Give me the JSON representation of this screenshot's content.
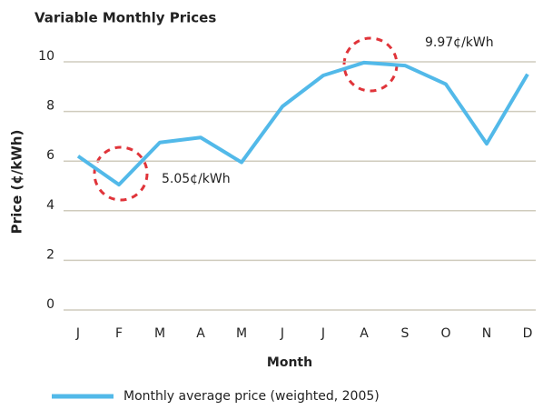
{
  "chart_data": {
    "type": "line",
    "title": "Variable Monthly Prices",
    "x_label": "Month",
    "y_label": "Price (¢/kWh)",
    "categories": [
      "J",
      "F",
      "M",
      "A",
      "M",
      "J",
      "J",
      "A",
      "S",
      "O",
      "N",
      "D"
    ],
    "series": [
      {
        "name": "Monthly average price (weighted, 2005)",
        "color": "#52b9e9",
        "values": [
          6.2,
          5.05,
          6.75,
          6.95,
          5.95,
          8.2,
          9.45,
          9.97,
          9.85,
          9.1,
          6.7,
          9.5
        ]
      }
    ],
    "annotations": [
      "5.05¢/kWh",
      "9.97¢/kWh"
    ],
    "ylim": [
      0,
      10
    ],
    "yticks": [
      0,
      2,
      4,
      6,
      8,
      10
    ],
    "grid": true
  }
}
